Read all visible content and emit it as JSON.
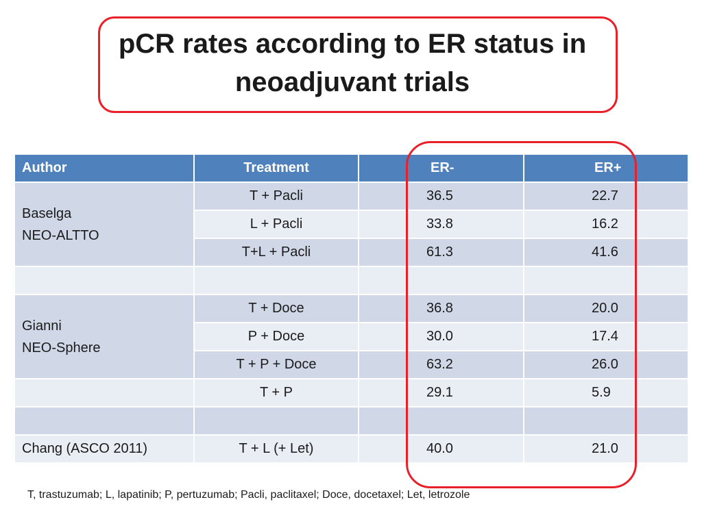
{
  "title": {
    "line1": "pCR rates according to ER status in",
    "line2": "neoadjuvant trials"
  },
  "table": {
    "headers": [
      "Author",
      "Treatment",
      "ER-",
      "ER+"
    ],
    "baselga": {
      "line1": "Baselga",
      "line2": "NEO-ALTTO"
    },
    "gianni": {
      "line1": "Gianni",
      "line2": "NEO-Sphere"
    },
    "chang": "Chang (ASCO 2011)",
    "rows": [
      {
        "treatment": "T + Pacli",
        "er_neg": "36.5",
        "er_pos": "22.7"
      },
      {
        "treatment": "L + Pacli",
        "er_neg": "33.8",
        "er_pos": "16.2"
      },
      {
        "treatment": "T+L + Pacli",
        "er_neg": "61.3",
        "er_pos": "41.6"
      },
      {
        "treatment": "T + Doce",
        "er_neg": "36.8",
        "er_pos": "20.0"
      },
      {
        "treatment": "P + Doce",
        "er_neg": "30.0",
        "er_pos": "17.4"
      },
      {
        "treatment": "T + P + Doce",
        "er_neg": "63.2",
        "er_pos": "26.0"
      },
      {
        "treatment": "T + P",
        "er_neg": "29.1",
        "er_pos": "5.9"
      },
      {
        "treatment": "T + L (+ Let)",
        "er_neg": "40.0",
        "er_pos": "21.0"
      }
    ]
  },
  "footnote": "T, trastuzumab; L, lapatinib; P, pertuzumab; Pacli, paclitaxel; Doce, docetaxel; Let, letrozole",
  "colors": {
    "header_blue": "#4f81bd",
    "row_dark": "#d0d8e8",
    "row_light": "#e9edf4",
    "highlight_red": "#e8202a"
  }
}
